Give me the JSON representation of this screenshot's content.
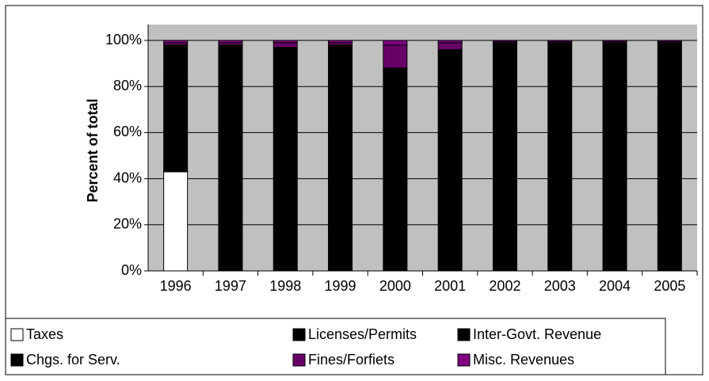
{
  "chart_data": {
    "type": "bar",
    "stacked": true,
    "categories": [
      "1996",
      "1997",
      "1998",
      "1999",
      "2000",
      "2001",
      "2002",
      "2003",
      "2004",
      "2005"
    ],
    "series": [
      {
        "name": "Taxes",
        "color": "#ffffff",
        "values": [
          43,
          0,
          0,
          0,
          0,
          0,
          0,
          0,
          0,
          0
        ]
      },
      {
        "name": "Licenses/Permits",
        "color": "#000000",
        "values": [
          2,
          0,
          0,
          0,
          0,
          0,
          0,
          0,
          0,
          0
        ]
      },
      {
        "name": "Inter-Govt. Revenue",
        "color": "#000000",
        "values": [
          40,
          98,
          97,
          98,
          88,
          96,
          99,
          99,
          99,
          99
        ]
      },
      {
        "name": "Chgs. for Serv.",
        "color": "#000000",
        "values": [
          13,
          0,
          0,
          0,
          0,
          0,
          0,
          0,
          0,
          0
        ]
      },
      {
        "name": "Fines/Forfiets",
        "color": "#660066",
        "values": [
          1,
          1,
          2,
          1,
          10,
          3,
          0.5,
          0.5,
          0.5,
          0.5
        ]
      },
      {
        "name": "Misc. Revenues",
        "color": "#800080",
        "values": [
          1,
          1,
          1,
          1,
          2,
          1,
          0.5,
          0.5,
          0.5,
          0.5
        ]
      }
    ],
    "ylabel": "Percent of total",
    "ylim": [
      0,
      100
    ],
    "yticks": [
      {
        "value": 0,
        "label": "0%"
      },
      {
        "value": 20,
        "label": "20%"
      },
      {
        "value": 40,
        "label": "40%"
      },
      {
        "value": 60,
        "label": "60%"
      },
      {
        "value": 80,
        "label": "80%"
      },
      {
        "value": 100,
        "label": "100%"
      }
    ],
    "grid": true
  }
}
